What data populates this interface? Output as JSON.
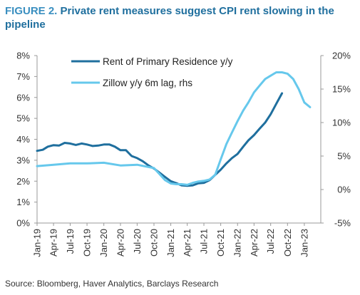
{
  "figure": {
    "prefix": "FIGURE 2.",
    "title": "Private rent measures suggest CPI rent slowing in the pipeline",
    "source": "Source: Bloomberg, Haver Analytics, Barclays Research"
  },
  "colors": {
    "primary_series": "#1f6f9e",
    "secondary_series": "#66c8ec",
    "axis": "#999999",
    "text": "#333333"
  },
  "chart_data": {
    "type": "line",
    "title": "Private rent measures suggest CPI rent slowing in the pipeline",
    "y_left": {
      "min": 0,
      "max": 8,
      "ticks": [
        "0%",
        "1%",
        "2%",
        "3%",
        "4%",
        "5%",
        "6%",
        "7%",
        "8%"
      ]
    },
    "y_right": {
      "min": -5,
      "max": 20,
      "ticks": [
        "-5%",
        "0%",
        "5%",
        "10%",
        "15%",
        "20%"
      ]
    },
    "x_tick_labels": [
      "Jan-19",
      "Apr-19",
      "Jul-19",
      "Oct-19",
      "Jan-20",
      "Apr-20",
      "Jul-20",
      "Oct-20",
      "Jan-21",
      "Apr-21",
      "Jul-21",
      "Oct-21",
      "Jan-22",
      "Apr-22",
      "Jul-22",
      "Oct-22",
      "Jan-23"
    ],
    "legend_position": "top-left",
    "grid": false,
    "series": [
      {
        "name": "Rent of Primary Residence y/y",
        "axis": "left",
        "color": "#1f6f9e",
        "x": [
          "2019-01",
          "2019-02",
          "2019-03",
          "2019-04",
          "2019-05",
          "2019-06",
          "2019-07",
          "2019-08",
          "2019-09",
          "2019-10",
          "2019-11",
          "2019-12",
          "2020-01",
          "2020-02",
          "2020-03",
          "2020-04",
          "2020-05",
          "2020-06",
          "2020-07",
          "2020-08",
          "2020-09",
          "2020-10",
          "2020-11",
          "2020-12",
          "2021-01",
          "2021-02",
          "2021-03",
          "2021-04",
          "2021-05",
          "2021-06",
          "2021-07",
          "2021-08",
          "2021-09",
          "2021-10",
          "2021-11",
          "2021-12",
          "2022-01",
          "2022-02",
          "2022-03",
          "2022-04",
          "2022-05",
          "2022-06",
          "2022-07",
          "2022-08",
          "2022-09"
        ],
        "values": [
          3.45,
          3.5,
          3.65,
          3.72,
          3.7,
          3.83,
          3.8,
          3.73,
          3.8,
          3.75,
          3.68,
          3.7,
          3.75,
          3.75,
          3.65,
          3.48,
          3.48,
          3.2,
          3.1,
          2.95,
          2.75,
          2.6,
          2.4,
          2.2,
          2.0,
          1.9,
          1.8,
          1.78,
          1.8,
          1.9,
          1.92,
          2.05,
          2.3,
          2.55,
          2.85,
          3.1,
          3.3,
          3.65,
          3.95,
          4.2,
          4.5,
          4.8,
          5.2,
          5.7,
          6.2
        ]
      },
      {
        "name": "Zillow y/y 6m lag, rhs",
        "axis": "right",
        "color": "#66c8ec",
        "x": [
          "2019-01",
          "2019-04",
          "2019-07",
          "2019-10",
          "2020-01",
          "2020-04",
          "2020-07",
          "2020-10",
          "2020-12",
          "2021-01",
          "2021-02",
          "2021-03",
          "2021-04",
          "2021-05",
          "2021-06",
          "2021-07",
          "2021-08",
          "2021-09",
          "2021-10",
          "2021-11",
          "2021-12",
          "2022-01",
          "2022-02",
          "2022-03",
          "2022-04",
          "2022-05",
          "2022-06",
          "2022-07",
          "2022-08",
          "2022-09",
          "2022-10",
          "2022-11",
          "2022-12",
          "2023-01",
          "2023-02"
        ],
        "values": [
          3.5,
          3.7,
          3.9,
          3.9,
          4.0,
          3.6,
          3.7,
          3.2,
          1.4,
          0.9,
          0.8,
          0.8,
          0.7,
          1.0,
          1.2,
          1.3,
          1.5,
          2.2,
          4.5,
          6.8,
          8.5,
          10.2,
          11.8,
          13.0,
          14.5,
          15.5,
          16.5,
          17.0,
          17.5,
          17.5,
          17.3,
          16.5,
          15.0,
          13.0,
          12.3
        ]
      }
    ]
  }
}
